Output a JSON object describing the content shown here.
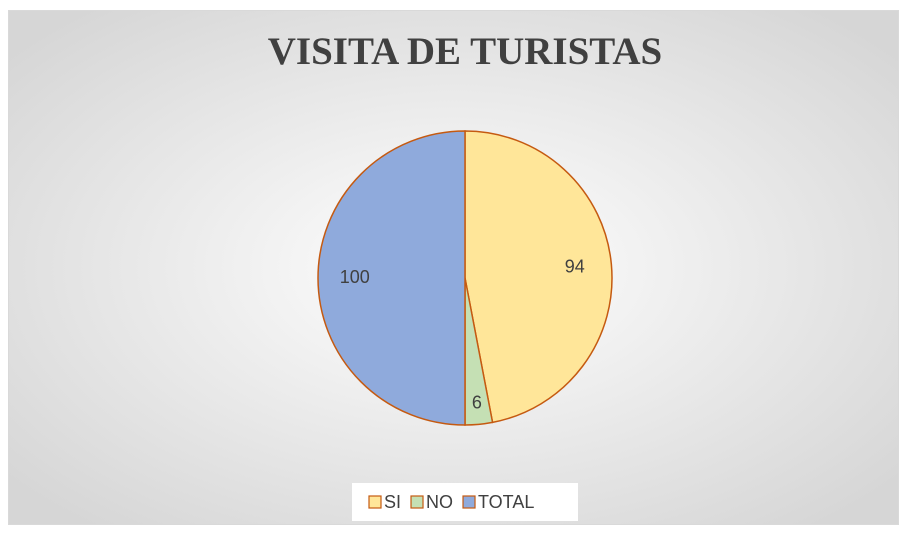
{
  "chart_data": {
    "type": "pie",
    "title": "VISITA DE TURISTAS",
    "categories": [
      "SI",
      "NO",
      "TOTAL"
    ],
    "values": [
      94,
      6,
      100
    ],
    "colors": [
      "#ffe699",
      "#c5e0b4",
      "#8faadc"
    ],
    "edge_color": "#c55a11",
    "legend": "bottom"
  }
}
